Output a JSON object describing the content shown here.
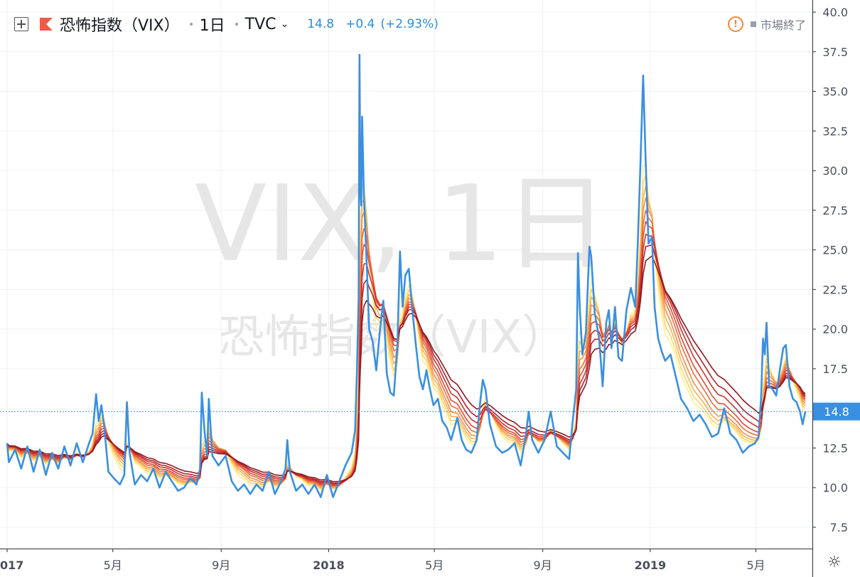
{
  "header": {
    "symbol_name": "恐怖指数（VIX）",
    "interval": "1日",
    "exchange": "TVC",
    "last": "14.8",
    "change": "+0.4",
    "change_pct": "(+2.93%)",
    "market_status": "市場終了",
    "warning_icon_text": "!"
  },
  "watermark": {
    "line1": "VIX, 1日",
    "line2": "恐怖指数（VIX）"
  },
  "colors": {
    "price_line": "#3a8fe0",
    "price_label_bg": "#3a8fe0",
    "ribbon": [
      "#fdf08a",
      "#fbd36e",
      "#f7b157",
      "#f38e48",
      "#ec6c3e",
      "#de4d36",
      "#c93530",
      "#b0232a",
      "#8e1a20"
    ],
    "grid": "#eef0f3",
    "axis_text": "#4a4f5c"
  },
  "icons": {
    "add": "plus-box-icon",
    "symbol_flag": "flag-icon",
    "interval_caret": "chevron-down-icon",
    "status": "warning-icon",
    "settings": "gear-icon"
  },
  "chart_data": {
    "type": "line",
    "title": "",
    "xlabel": "",
    "ylabel": "",
    "ylim": [
      6.0,
      40.5
    ],
    "y_ticks": [
      "40.0",
      "37.5",
      "35.0",
      "32.5",
      "30.0",
      "27.5",
      "25.0",
      "22.5",
      "20.0",
      "17.5",
      "15.0",
      "12.5",
      "10.0",
      "7.5"
    ],
    "y_tick_values": [
      40.0,
      37.5,
      35.0,
      32.5,
      30.0,
      27.5,
      25.0,
      22.5,
      20.0,
      17.5,
      15.0,
      12.5,
      10.0,
      7.5
    ],
    "x_range": [
      "2017-01-01",
      "2019-06-26"
    ],
    "x_ticks": [
      {
        "label": "017",
        "date": "2017-01-01"
      },
      {
        "label": "5月",
        "date": "2017-05-01"
      },
      {
        "label": "9月",
        "date": "2017-09-01"
      },
      {
        "label": "2018",
        "date": "2018-01-01"
      },
      {
        "label": "5月",
        "date": "2018-05-01"
      },
      {
        "label": "9月",
        "date": "2018-09-01"
      },
      {
        "label": "2019",
        "date": "2019-01-01"
      },
      {
        "label": "5月",
        "date": "2019-05-01"
      }
    ],
    "last_value": 14.8,
    "last_value_label": "14.8",
    "grid": true,
    "legend": "none",
    "series": [
      {
        "values": [
          [
            "2017-01-01",
            12.8
          ],
          [
            "2017-01-03",
            11.6
          ],
          [
            "2017-01-10",
            12.4
          ],
          [
            "2017-01-17",
            11.2
          ],
          [
            "2017-01-24",
            12.6
          ],
          [
            "2017-01-31",
            11.0
          ],
          [
            "2017-02-07",
            12.4
          ],
          [
            "2017-02-14",
            10.8
          ],
          [
            "2017-02-21",
            12.2
          ],
          [
            "2017-02-28",
            11.2
          ],
          [
            "2017-03-07",
            12.6
          ],
          [
            "2017-03-14",
            11.4
          ],
          [
            "2017-03-21",
            12.8
          ],
          [
            "2017-03-28",
            11.6
          ],
          [
            "2017-04-04",
            12.8
          ],
          [
            "2017-04-08",
            13.4
          ],
          [
            "2017-04-12",
            15.9
          ],
          [
            "2017-04-15",
            14.2
          ],
          [
            "2017-04-18",
            15.2
          ],
          [
            "2017-04-21",
            14.0
          ],
          [
            "2017-04-26",
            11.0
          ],
          [
            "2017-05-02",
            10.6
          ],
          [
            "2017-05-09",
            10.2
          ],
          [
            "2017-05-14",
            10.8
          ],
          [
            "2017-05-17",
            15.4
          ],
          [
            "2017-05-20",
            12.2
          ],
          [
            "2017-05-26",
            10.2
          ],
          [
            "2017-06-02",
            10.8
          ],
          [
            "2017-06-09",
            10.4
          ],
          [
            "2017-06-16",
            11.2
          ],
          [
            "2017-06-23",
            10.0
          ],
          [
            "2017-06-30",
            11.0
          ],
          [
            "2017-07-07",
            10.4
          ],
          [
            "2017-07-14",
            9.8
          ],
          [
            "2017-07-21",
            10.0
          ],
          [
            "2017-07-28",
            10.6
          ],
          [
            "2017-08-04",
            10.2
          ],
          [
            "2017-08-08",
            11.2
          ],
          [
            "2017-08-10",
            16.0
          ],
          [
            "2017-08-13",
            13.6
          ],
          [
            "2017-08-16",
            12.0
          ],
          [
            "2017-08-18",
            15.6
          ],
          [
            "2017-08-22",
            12.0
          ],
          [
            "2017-08-29",
            11.4
          ],
          [
            "2017-09-06",
            12.0
          ],
          [
            "2017-09-13",
            10.4
          ],
          [
            "2017-09-20",
            9.8
          ],
          [
            "2017-09-27",
            10.2
          ],
          [
            "2017-10-04",
            9.6
          ],
          [
            "2017-10-11",
            10.2
          ],
          [
            "2017-10-18",
            9.8
          ],
          [
            "2017-10-25",
            11.0
          ],
          [
            "2017-11-01",
            9.6
          ],
          [
            "2017-11-08",
            10.4
          ],
          [
            "2017-11-13",
            11.2
          ],
          [
            "2017-11-15",
            13.0
          ],
          [
            "2017-11-18",
            11.0
          ],
          [
            "2017-11-25",
            9.8
          ],
          [
            "2017-12-02",
            10.2
          ],
          [
            "2017-12-09",
            9.6
          ],
          [
            "2017-12-16",
            10.2
          ],
          [
            "2017-12-23",
            9.4
          ],
          [
            "2017-12-30",
            10.8
          ],
          [
            "2018-01-06",
            9.4
          ],
          [
            "2018-01-13",
            10.4
          ],
          [
            "2018-01-20",
            11.4
          ],
          [
            "2018-01-27",
            12.2
          ],
          [
            "2018-01-31",
            13.6
          ],
          [
            "2018-02-02",
            17.2
          ],
          [
            "2018-02-04",
            22.0
          ],
          [
            "2018-02-05",
            37.3
          ],
          [
            "2018-02-06",
            29.0
          ],
          [
            "2018-02-07",
            27.8
          ],
          [
            "2018-02-08",
            33.4
          ],
          [
            "2018-02-10",
            28.4
          ],
          [
            "2018-02-13",
            24.4
          ],
          [
            "2018-02-16",
            20.0
          ],
          [
            "2018-02-20",
            19.2
          ],
          [
            "2018-02-24",
            17.4
          ],
          [
            "2018-02-28",
            19.8
          ],
          [
            "2018-03-04",
            21.8
          ],
          [
            "2018-03-08",
            17.2
          ],
          [
            "2018-03-12",
            16.0
          ],
          [
            "2018-03-16",
            15.8
          ],
          [
            "2018-03-20",
            19.0
          ],
          [
            "2018-03-23",
            24.9
          ],
          [
            "2018-03-26",
            21.4
          ],
          [
            "2018-03-29",
            23.4
          ],
          [
            "2018-04-02",
            23.8
          ],
          [
            "2018-04-06",
            21.2
          ],
          [
            "2018-04-10",
            19.0
          ],
          [
            "2018-04-14",
            17.0
          ],
          [
            "2018-04-18",
            16.2
          ],
          [
            "2018-04-22",
            17.4
          ],
          [
            "2018-04-26",
            16.2
          ],
          [
            "2018-04-30",
            15.2
          ],
          [
            "2018-05-05",
            15.6
          ],
          [
            "2018-05-10",
            14.2
          ],
          [
            "2018-05-15",
            13.8
          ],
          [
            "2018-05-20",
            13.0
          ],
          [
            "2018-05-27",
            14.4
          ],
          [
            "2018-06-01",
            13.0
          ],
          [
            "2018-06-06",
            12.4
          ],
          [
            "2018-06-12",
            12.2
          ],
          [
            "2018-06-18",
            13.0
          ],
          [
            "2018-06-22",
            15.4
          ],
          [
            "2018-06-25",
            16.8
          ],
          [
            "2018-06-28",
            16.2
          ],
          [
            "2018-07-03",
            14.0
          ],
          [
            "2018-07-10",
            12.6
          ],
          [
            "2018-07-17",
            12.2
          ],
          [
            "2018-07-24",
            12.4
          ],
          [
            "2018-07-31",
            12.8
          ],
          [
            "2018-08-07",
            11.4
          ],
          [
            "2018-08-13",
            13.4
          ],
          [
            "2018-08-16",
            14.8
          ],
          [
            "2018-08-20",
            13.0
          ],
          [
            "2018-08-27",
            12.2
          ],
          [
            "2018-09-03",
            13.0
          ],
          [
            "2018-09-10",
            14.8
          ],
          [
            "2018-09-17",
            12.6
          ],
          [
            "2018-09-24",
            12.2
          ],
          [
            "2018-10-01",
            11.8
          ],
          [
            "2018-10-05",
            14.2
          ],
          [
            "2018-10-09",
            16.2
          ],
          [
            "2018-10-11",
            24.8
          ],
          [
            "2018-10-13",
            21.4
          ],
          [
            "2018-10-16",
            18.4
          ],
          [
            "2018-10-20",
            19.8
          ],
          [
            "2018-10-24",
            25.2
          ],
          [
            "2018-10-26",
            24.6
          ],
          [
            "2018-10-30",
            21.0
          ],
          [
            "2018-11-04",
            19.4
          ],
          [
            "2018-11-08",
            16.4
          ],
          [
            "2018-11-12",
            20.4
          ],
          [
            "2018-11-15",
            21.2
          ],
          [
            "2018-11-18",
            18.8
          ],
          [
            "2018-11-22",
            21.4
          ],
          [
            "2018-11-26",
            18.2
          ],
          [
            "2018-11-30",
            18.0
          ],
          [
            "2018-12-05",
            21.2
          ],
          [
            "2018-12-10",
            22.6
          ],
          [
            "2018-12-15",
            21.4
          ],
          [
            "2018-12-18",
            25.6
          ],
          [
            "2018-12-21",
            30.6
          ],
          [
            "2018-12-24",
            36.0
          ],
          [
            "2018-12-27",
            30.4
          ],
          [
            "2018-12-30",
            25.4
          ],
          [
            "2019-01-03",
            25.8
          ],
          [
            "2019-01-06",
            21.4
          ],
          [
            "2019-01-10",
            19.4
          ],
          [
            "2019-01-14",
            18.6
          ],
          [
            "2019-01-18",
            18.0
          ],
          [
            "2019-01-24",
            18.4
          ],
          [
            "2019-01-30",
            17.0
          ],
          [
            "2019-02-05",
            15.6
          ],
          [
            "2019-02-12",
            15.0
          ],
          [
            "2019-02-19",
            14.2
          ],
          [
            "2019-02-26",
            14.6
          ],
          [
            "2019-03-05",
            14.0
          ],
          [
            "2019-03-12",
            13.2
          ],
          [
            "2019-03-19",
            13.4
          ],
          [
            "2019-03-26",
            15.0
          ],
          [
            "2019-04-02",
            13.4
          ],
          [
            "2019-04-09",
            13.0
          ],
          [
            "2019-04-16",
            12.2
          ],
          [
            "2019-04-23",
            12.6
          ],
          [
            "2019-04-30",
            12.8
          ],
          [
            "2019-05-04",
            13.2
          ],
          [
            "2019-05-07",
            15.8
          ],
          [
            "2019-05-09",
            19.4
          ],
          [
            "2019-05-11",
            18.4
          ],
          [
            "2019-05-13",
            20.4
          ],
          [
            "2019-05-16",
            16.4
          ],
          [
            "2019-05-20",
            16.2
          ],
          [
            "2019-05-24",
            15.8
          ],
          [
            "2019-05-28",
            17.4
          ],
          [
            "2019-06-01",
            18.8
          ],
          [
            "2019-06-04",
            19.0
          ],
          [
            "2019-06-08",
            16.4
          ],
          [
            "2019-06-12",
            15.6
          ],
          [
            "2019-06-16",
            15.4
          ],
          [
            "2019-06-20",
            14.8
          ],
          [
            "2019-06-23",
            14.0
          ],
          [
            "2019-06-26",
            14.8
          ]
        ]
      }
    ]
  }
}
